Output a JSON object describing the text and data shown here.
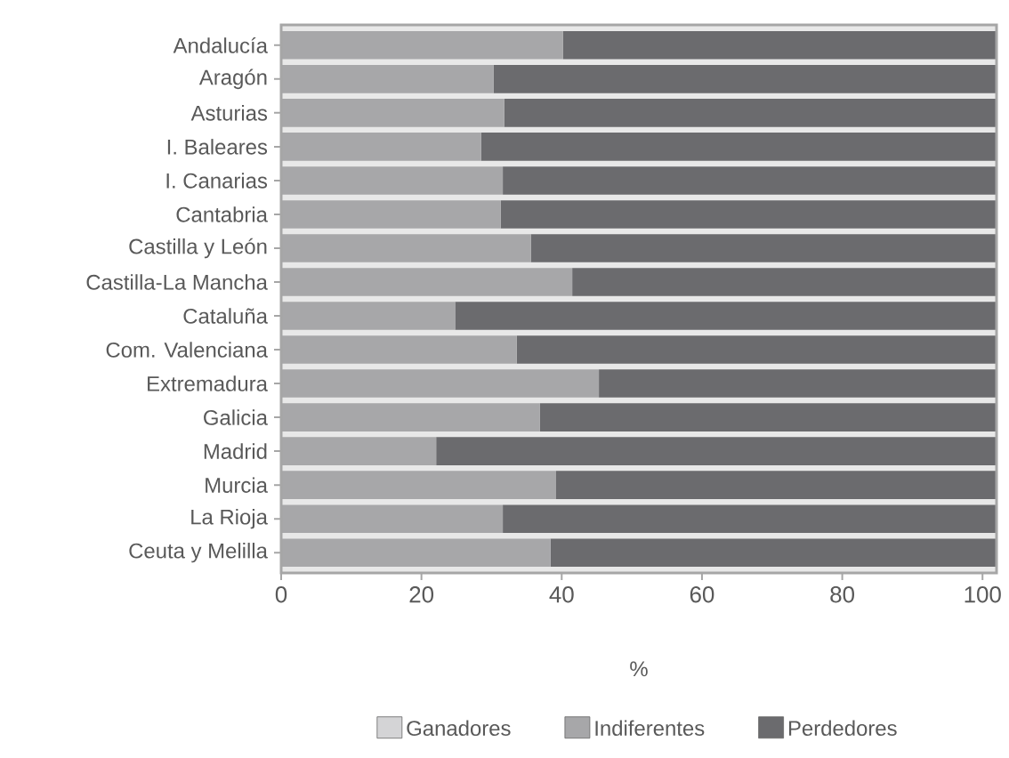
{
  "chart_data": {
    "type": "bar",
    "orientation": "horizontal",
    "stacked": true,
    "categories": [
      "Andalucía",
      "Aragón",
      "Asturias",
      "I. Baleares",
      "I. Canarias",
      "Cantabria",
      "Castilla y León",
      "Castilla-La Mancha",
      "Cataluña",
      "Com. Valenciana",
      "Extremadura",
      "Galicia",
      "Madrid",
      "Murcia",
      "La Rioja",
      "Ceuta y Melilla"
    ],
    "series": [
      {
        "name": "Ganadores",
        "color": "#d4d4d6",
        "values": [
          0,
          0,
          0,
          0,
          0,
          0,
          0,
          0,
          0,
          0,
          0,
          0,
          0,
          0,
          0,
          0
        ]
      },
      {
        "name": "Indiferentes",
        "color": "#a7a7a9",
        "values": [
          40.2,
          30.3,
          31.8,
          28.5,
          31.6,
          31.3,
          35.6,
          41.5,
          24.8,
          33.6,
          45.3,
          36.9,
          22.1,
          39.2,
          31.6,
          38.4
        ]
      },
      {
        "name": "Perdedores",
        "color": "#6b6b6e",
        "values": [
          61.8,
          71.7,
          70.2,
          73.5,
          70.4,
          70.7,
          66.4,
          60.5,
          77.2,
          68.4,
          56.7,
          65.1,
          79.9,
          62.8,
          70.4,
          63.6
        ]
      }
    ],
    "xlim": [
      0,
      102
    ],
    "xticks": [
      0,
      20,
      40,
      60,
      80,
      100
    ],
    "xlabel": "%",
    "legend": "bottom"
  }
}
